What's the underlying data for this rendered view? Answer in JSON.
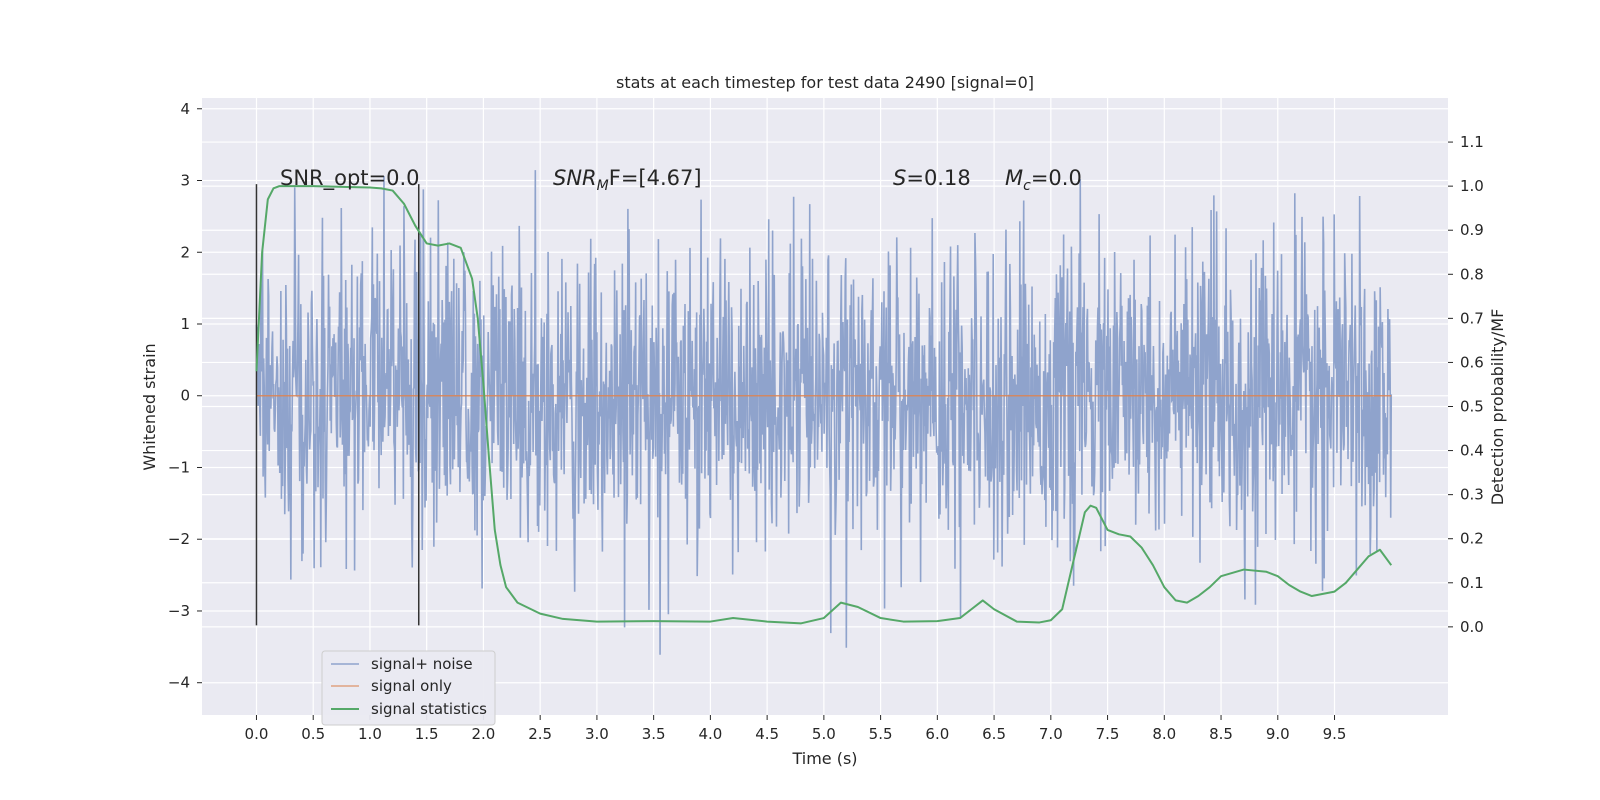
{
  "chart_data": {
    "type": "line",
    "title": "stats at each timestep for test data 2490 [signal=0]",
    "xlabel": "Time (s)",
    "ylabel": "Whitened strain",
    "ylabel_right": "Detection probability/MF",
    "xlim": [
      -0.48,
      10.5
    ],
    "ylim": [
      -4.45,
      4.15
    ],
    "ylim_right": [
      -0.2,
      1.2
    ],
    "x_ticks": [
      0.0,
      0.5,
      1.0,
      1.5,
      2.0,
      2.5,
      3.0,
      3.5,
      4.0,
      4.5,
      5.0,
      5.5,
      6.0,
      6.5,
      7.0,
      7.5,
      8.0,
      8.5,
      9.0,
      9.5
    ],
    "x_tick_labels": [
      "0.0",
      "0.5",
      "1.0",
      "1.5",
      "2.0",
      "2.5",
      "3.0",
      "3.5",
      "4.0",
      "4.5",
      "5.0",
      "5.5",
      "6.0",
      "6.5",
      "7.0",
      "7.5",
      "8.0",
      "8.5",
      "9.0",
      "9.5"
    ],
    "y_ticks": [
      -4,
      -3,
      -2,
      -1,
      0,
      1,
      2,
      3,
      4
    ],
    "y_tick_labels": [
      "−4",
      "−3",
      "−2",
      "−1",
      "0",
      "1",
      "2",
      "3",
      "4"
    ],
    "y_right_ticks": [
      0.0,
      0.1,
      0.2,
      0.3,
      0.4,
      0.5,
      0.6,
      0.7,
      0.8,
      0.9,
      1.0,
      1.1
    ],
    "y_right_tick_labels": [
      "0.0",
      "0.1",
      "0.2",
      "0.3",
      "0.4",
      "0.5",
      "0.6",
      "0.7",
      "0.8",
      "0.9",
      "1.0",
      "1.1"
    ],
    "colors": {
      "background": "#eaeaf2",
      "grid": "#ffffff",
      "signal_noise": "#8fa3cc",
      "signal_only": "#dd8452",
      "statistics": "#55a868",
      "markers": "#333333"
    },
    "series": [
      {
        "name": "signal+ noise",
        "axis": "left",
        "style": "dense-noise",
        "x_range": [
          0.0,
          10.0
        ],
        "sigma": 1.0,
        "n_samples": 2048
      },
      {
        "name": "signal only",
        "axis": "left",
        "x": [
          0.0,
          10.0
        ],
        "y": [
          0.0,
          0.0
        ]
      },
      {
        "name": "signal statistics",
        "axis": "right",
        "x": [
          0.0,
          0.05,
          0.1,
          0.15,
          0.2,
          0.3,
          0.5,
          0.8,
          1.0,
          1.1,
          1.2,
          1.3,
          1.4,
          1.5,
          1.6,
          1.7,
          1.8,
          1.9,
          1.95,
          2.0,
          2.05,
          2.1,
          2.15,
          2.2,
          2.3,
          2.5,
          2.7,
          3.0,
          3.5,
          4.0,
          4.2,
          4.5,
          4.8,
          5.0,
          5.15,
          5.3,
          5.5,
          5.7,
          6.0,
          6.2,
          6.3,
          6.4,
          6.5,
          6.7,
          6.9,
          7.0,
          7.1,
          7.2,
          7.3,
          7.35,
          7.4,
          7.5,
          7.6,
          7.7,
          7.8,
          7.9,
          8.0,
          8.1,
          8.2,
          8.3,
          8.4,
          8.5,
          8.7,
          8.9,
          9.0,
          9.1,
          9.2,
          9.3,
          9.5,
          9.6,
          9.7,
          9.8,
          9.9,
          10.0
        ],
        "y": [
          0.58,
          0.85,
          0.97,
          0.995,
          1.0,
          1.0,
          1.0,
          0.998,
          0.997,
          0.995,
          0.99,
          0.96,
          0.91,
          0.87,
          0.865,
          0.87,
          0.86,
          0.79,
          0.7,
          0.55,
          0.38,
          0.22,
          0.14,
          0.09,
          0.055,
          0.03,
          0.018,
          0.012,
          0.013,
          0.012,
          0.02,
          0.012,
          0.008,
          0.02,
          0.055,
          0.045,
          0.02,
          0.012,
          0.013,
          0.02,
          0.04,
          0.06,
          0.04,
          0.012,
          0.01,
          0.015,
          0.04,
          0.15,
          0.26,
          0.275,
          0.27,
          0.22,
          0.21,
          0.205,
          0.18,
          0.14,
          0.09,
          0.06,
          0.055,
          0.07,
          0.09,
          0.115,
          0.13,
          0.125,
          0.115,
          0.095,
          0.08,
          0.07,
          0.08,
          0.1,
          0.13,
          0.16,
          0.175,
          0.14
        ]
      }
    ],
    "vlines": [
      {
        "x": 0.0,
        "y_range": [
          -3.2,
          2.95
        ]
      },
      {
        "x": 1.43,
        "y_range": [
          -3.2,
          2.95
        ]
      }
    ],
    "annotations": {
      "snr_opt": "SNR_opt=0.0",
      "snr_mf_main": "SNR",
      "snr_mf_sub": "M",
      "snr_mf_rest": "F=[4.67]",
      "s_main": "S",
      "s_rest": "=0.18",
      "mc_main": "M",
      "mc_sub": "c",
      "mc_rest": "=0.0"
    },
    "legend": {
      "position": "lower-left",
      "entries": [
        "signal+ noise",
        "signal only",
        "signal statistics"
      ]
    }
  }
}
